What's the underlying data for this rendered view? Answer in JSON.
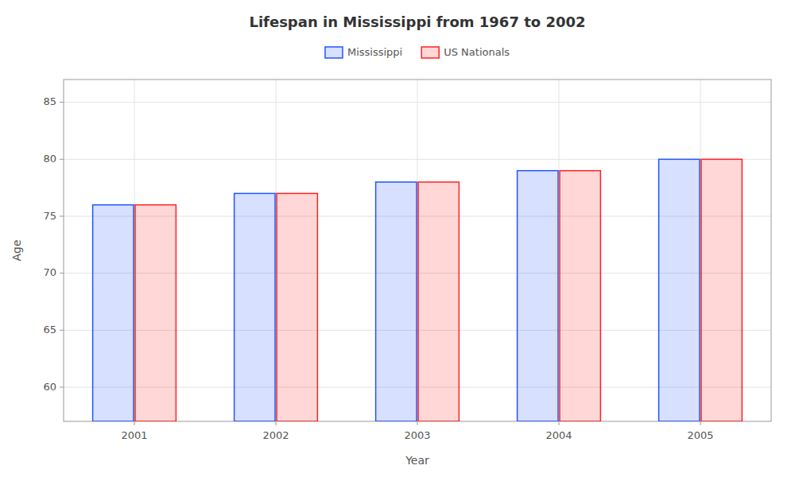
{
  "chart_data": {
    "type": "bar",
    "title": "Lifespan in Mississippi from 1967 to 2002",
    "xlabel": "Year",
    "ylabel": "Age",
    "categories": [
      "2001",
      "2002",
      "2003",
      "2004",
      "2005"
    ],
    "series": [
      {
        "name": "Mississippi",
        "color": "#2255ff",
        "values": [
          76,
          77,
          78,
          79,
          80
        ]
      },
      {
        "name": "US Nationals",
        "color": "#ff2222",
        "values": [
          76,
          77,
          78,
          79,
          80
        ]
      }
    ],
    "ylim": [
      57,
      87
    ],
    "yticks": [
      60,
      65,
      70,
      75,
      80,
      85
    ],
    "grid": true,
    "legend": "top"
  }
}
